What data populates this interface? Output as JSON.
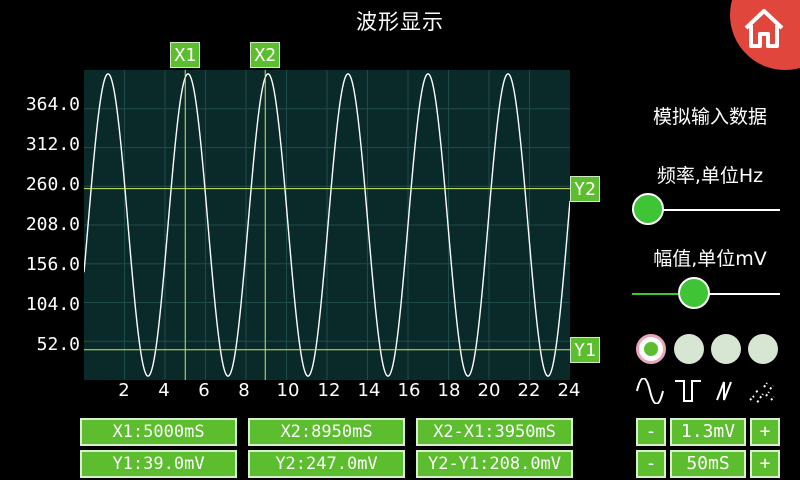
{
  "title": "波形显示",
  "home_icon": "home-icon",
  "colors": {
    "accent": "#5cbd2e",
    "plot_bg": "#0a2a2a",
    "home_bg": "#e0463c",
    "knob": "#3ec434"
  },
  "cursors": {
    "x1": "X1",
    "x2": "X2",
    "y1": "Y1",
    "y2": "Y2"
  },
  "readouts": {
    "x1": "X1:5000mS",
    "x2": "X2:8950mS",
    "dx": "X2-X1:3950mS",
    "y1": "Y1:39.0mV",
    "y2": "Y2:247.0mV",
    "dy": "Y2-Y1:208.0mV"
  },
  "panel": {
    "heading": "模拟输入数据",
    "freq_label": "频率,单位Hz",
    "amp_label": "幅值,单位mV",
    "freq_slider_value": 0.0,
    "amp_slider_value": 0.4,
    "waveform_icons": [
      "sine-wave-icon",
      "square-wave-icon",
      "sawtooth-wave-icon",
      "noise-wave-icon"
    ],
    "selected_waveform_index": 0,
    "amp_value": "1.3mV",
    "time_value": "50mS",
    "minus": "-",
    "plus": "+"
  },
  "chart_data": {
    "type": "line",
    "ytick_labels": [
      "364.0",
      "312.0",
      "260.0",
      "208.0",
      "156.0",
      "104.0",
      "52.0"
    ],
    "xtick_labels": [
      "2",
      "4",
      "6",
      "8",
      "10",
      "12",
      "14",
      "16",
      "18",
      "20",
      "22",
      "24"
    ],
    "xlim": [
      0,
      24
    ],
    "ylim": [
      0,
      400
    ],
    "series": [
      {
        "waveform": "sine",
        "amplitude": 195,
        "offset": 200,
        "period": 3.95,
        "x_start": 0,
        "x_end": 24
      }
    ],
    "cursor_x": [
      5.0,
      8.95
    ],
    "cursor_y": [
      39.0,
      247.0
    ],
    "grid": true
  }
}
